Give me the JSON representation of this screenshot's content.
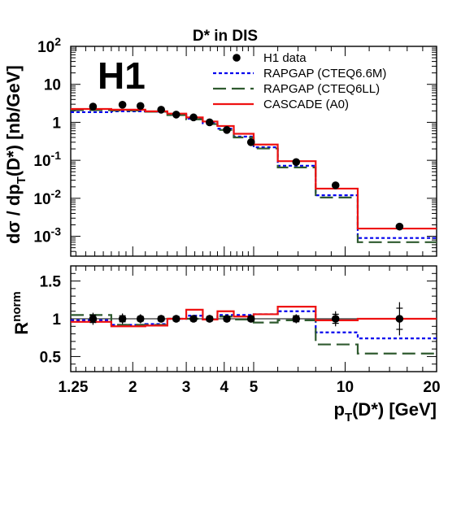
{
  "chart_data": [
    {
      "type": "line",
      "title": "D* in DIS",
      "ylabel": "dσ / dp_T(D*) [nb/GeV]",
      "xscale": "log",
      "yscale": "log",
      "xlim": [
        1.25,
        20
      ],
      "ylim": [
        0.0003,
        100
      ],
      "experiment_label": "H1",
      "y_tick_labels": [
        {
          "base": "10",
          "exp": "-3",
          "value": 0.001
        },
        {
          "base": "10",
          "exp": "-2",
          "value": 0.01
        },
        {
          "base": "10",
          "exp": "-1",
          "value": 0.1
        },
        {
          "base": "1",
          "exp": "",
          "value": 1
        },
        {
          "base": "10",
          "exp": "",
          "value": 10
        },
        {
          "base": "10",
          "exp": "2",
          "value": 100
        }
      ],
      "legend_position": "top-right",
      "bin_edges": [
        1.25,
        1.7,
        2.2,
        2.6,
        3.0,
        3.4,
        3.8,
        4.3,
        5.0,
        6.0,
        8.0,
        11.0,
        20.0
      ],
      "series": [
        {
          "name": "H1 data",
          "style": "points",
          "color": "#000000",
          "x": [
            1.48,
            1.85,
            2.12,
            2.48,
            2.78,
            3.17,
            3.58,
            4.08,
            4.9,
            6.9,
            9.3,
            15.1
          ],
          "y": [
            2.6,
            2.9,
            2.7,
            2.15,
            1.6,
            1.35,
            1.0,
            0.63,
            0.3,
            0.09,
            0.022,
            0.0018
          ]
        },
        {
          "name": "RAPGAP (CTEQ6.6M)",
          "style": "dotted-histogram",
          "color": "#0000ee",
          "y": [
            1.85,
            1.95,
            1.9,
            1.6,
            1.25,
            0.95,
            0.68,
            0.42,
            0.22,
            0.072,
            0.012,
            0.0009
          ]
        },
        {
          "name": "RAPGAP (CTEQ6LL)",
          "style": "dashed-histogram",
          "color": "#2f5a2f",
          "y": [
            2.1,
            2.05,
            1.9,
            1.55,
            1.2,
            0.9,
            0.63,
            0.4,
            0.205,
            0.065,
            0.0105,
            0.0007
          ]
        },
        {
          "name": "CASCADE (A0)",
          "style": "solid-histogram",
          "color": "#ee1111",
          "y": [
            2.25,
            2.15,
            1.95,
            1.7,
            1.35,
            1.05,
            0.8,
            0.5,
            0.26,
            0.095,
            0.018,
            0.0016
          ]
        }
      ]
    },
    {
      "type": "line",
      "ylabel": "R^norm",
      "xlabel": "p_T(D*) [GeV]",
      "xscale": "log",
      "xlim": [
        1.25,
        20
      ],
      "ylim": [
        0.3,
        1.7
      ],
      "y_ticks": [
        0.5,
        1,
        1.5
      ],
      "y_tick_labels": [
        "0.5",
        "1",
        "1.5"
      ],
      "x_ticks": [
        1.25,
        2,
        3,
        4,
        5,
        10,
        20
      ],
      "x_tick_labels": [
        "1.25",
        "2",
        "3",
        "4",
        "5",
        "10",
        "20"
      ],
      "series": [
        {
          "name": "H1 data",
          "style": "points-with-errors",
          "color": "#000000",
          "x": [
            1.48,
            1.85,
            2.12,
            2.48,
            2.78,
            3.17,
            3.58,
            4.08,
            4.9,
            6.9,
            9.3,
            15.1
          ],
          "y": [
            1,
            1,
            1,
            1,
            1,
            1,
            1,
            1,
            1,
            1,
            1,
            1
          ],
          "err": [
            0.08,
            0.07,
            0.06,
            0.05,
            0.05,
            0.04,
            0.05,
            0.05,
            0.05,
            0.06,
            0.1,
            0.22
          ],
          "err_inner": [
            0.05,
            0.04,
            0.03,
            0.03,
            0.03,
            0.03,
            0.03,
            0.03,
            0.03,
            0.04,
            0.06,
            0.14
          ]
        },
        {
          "name": "RAPGAP (CTEQ6.6M)",
          "style": "dotted-histogram",
          "color": "#0000ee",
          "y": [
            0.98,
            0.92,
            0.93,
            1.0,
            1.04,
            0.99,
            1.05,
            1.05,
            1.06,
            1.1,
            0.82,
            0.74
          ]
        },
        {
          "name": "RAPGAP (CTEQ6LL)",
          "style": "dashed-histogram",
          "color": "#2f5a2f",
          "y": [
            1.05,
            0.92,
            0.92,
            1.0,
            1.0,
            0.99,
            1.03,
            0.99,
            0.95,
            0.98,
            0.66,
            0.54
          ]
        },
        {
          "name": "CASCADE (A0)",
          "style": "solid-histogram",
          "color": "#ee1111",
          "y": [
            0.96,
            0.9,
            0.91,
            1.0,
            1.12,
            0.99,
            1.1,
            1.03,
            1.06,
            1.16,
            0.98,
            1.0
          ]
        }
      ]
    }
  ]
}
